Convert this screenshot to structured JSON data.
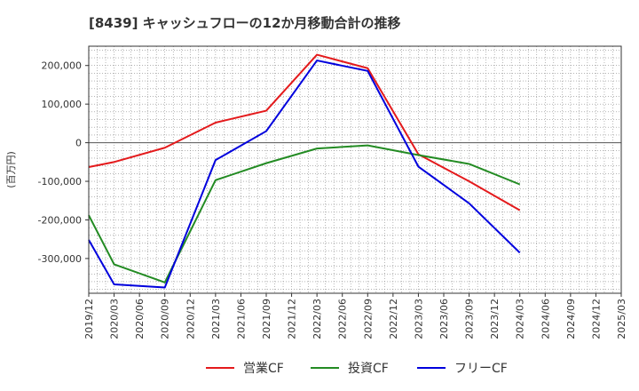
{
  "chart_data": {
    "type": "line",
    "title": "[8439]  キャッシュフローの12か月移動合計の推移",
    "ylabel": "(百万円)",
    "xlabel": "",
    "ylim": [
      -390000,
      250000
    ],
    "yticks": [
      200000,
      100000,
      0,
      -100000,
      -200000,
      -300000
    ],
    "ytick_labels": [
      "200,000",
      "100,000",
      "0",
      "-100,000",
      "-200,000",
      "-300,000"
    ],
    "x_ticks": [
      "2019/12",
      "2020/03",
      "2020/06",
      "2020/09",
      "2020/12",
      "2021/03",
      "2021/06",
      "2021/09",
      "2021/12",
      "2022/03",
      "2022/06",
      "2022/09",
      "2022/12",
      "2023/03",
      "2023/06",
      "2023/09",
      "2023/12",
      "2024/03",
      "2024/06",
      "2024/09",
      "2024/12",
      "2025/03"
    ],
    "grid": true,
    "legend_position": "bottom",
    "series": [
      {
        "name": "営業CF",
        "color": "#e41a1c",
        "points": [
          {
            "x": "2019/12",
            "y": -63000
          },
          {
            "x": "2020/03",
            "y": -50000
          },
          {
            "x": "2020/09",
            "y": -13000
          },
          {
            "x": "2021/03",
            "y": 52000
          },
          {
            "x": "2021/09",
            "y": 83000
          },
          {
            "x": "2022/03",
            "y": 228000
          },
          {
            "x": "2022/09",
            "y": 193000
          },
          {
            "x": "2023/03",
            "y": -30000
          },
          {
            "x": "2023/09",
            "y": -100000
          },
          {
            "x": "2024/03",
            "y": -175000
          }
        ]
      },
      {
        "name": "投資CF",
        "color": "#238b23",
        "points": [
          {
            "x": "2019/12",
            "y": -188000
          },
          {
            "x": "2020/03",
            "y": -315000
          },
          {
            "x": "2020/09",
            "y": -362000
          },
          {
            "x": "2021/03",
            "y": -97000
          },
          {
            "x": "2021/09",
            "y": -53000
          },
          {
            "x": "2022/03",
            "y": -15000
          },
          {
            "x": "2022/09",
            "y": -7000
          },
          {
            "x": "2023/03",
            "y": -32000
          },
          {
            "x": "2023/09",
            "y": -55000
          },
          {
            "x": "2024/03",
            "y": -108000
          }
        ]
      },
      {
        "name": "フリーCF",
        "color": "#0000dd",
        "points": [
          {
            "x": "2019/12",
            "y": -252000
          },
          {
            "x": "2020/03",
            "y": -367000
          },
          {
            "x": "2020/09",
            "y": -375000
          },
          {
            "x": "2021/03",
            "y": -45000
          },
          {
            "x": "2021/09",
            "y": 30000
          },
          {
            "x": "2022/03",
            "y": 213000
          },
          {
            "x": "2022/09",
            "y": 186000
          },
          {
            "x": "2023/03",
            "y": -62000
          },
          {
            "x": "2023/09",
            "y": -157000
          },
          {
            "x": "2024/03",
            "y": -285000
          }
        ]
      }
    ]
  }
}
